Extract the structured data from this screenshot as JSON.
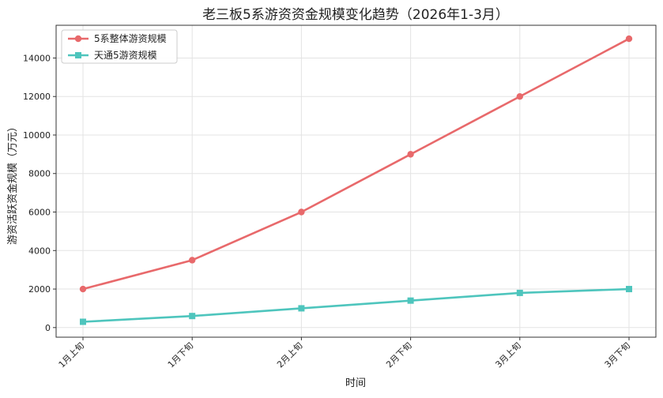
{
  "chart_data": {
    "type": "line",
    "title": "老三板5系游资资金规模变化趋势（2026年1-3月）",
    "xlabel": "时间",
    "ylabel": "游资活跃资金规模（万元）",
    "categories": [
      "1月上旬",
      "1月下旬",
      "2月上旬",
      "2月下旬",
      "3月上旬",
      "3月下旬"
    ],
    "ylim": [
      -500,
      15700
    ],
    "yticks": [
      0,
      2000,
      4000,
      6000,
      8000,
      10000,
      12000,
      14000
    ],
    "grid": true,
    "legend_position": "top-left",
    "series": [
      {
        "name": "5系整体游资规模",
        "values": [
          2000,
          3500,
          6000,
          9000,
          12000,
          15000
        ],
        "color": "#e8696b",
        "marker": "circle"
      },
      {
        "name": "天通5游资规模",
        "values": [
          300,
          600,
          1000,
          1400,
          1800,
          2000
        ],
        "color": "#4ec5bd",
        "marker": "square"
      }
    ]
  }
}
